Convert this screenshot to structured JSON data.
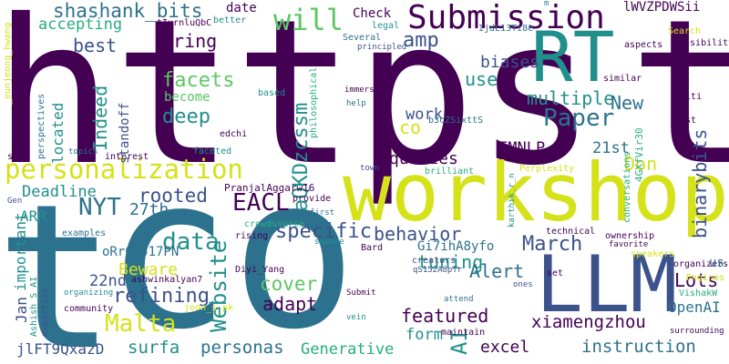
{
  "palette": [
    "#440154",
    "#3b528b",
    "#2c728e",
    "#21908c",
    "#27ad81",
    "#5cc863",
    "#aadc32",
    "#d5e21a",
    "#fde725"
  ],
  "words": [
    {
      "text": "https",
      "color": "#440154"
    },
    {
      "text": "t",
      "color": "#440154"
    },
    {
      "text": "co",
      "color": "#2c728e"
    },
    {
      "text": "t",
      "color": "#2c728e"
    },
    {
      "text": "workshop",
      "color": "#d5e21a"
    },
    {
      "text": "RT",
      "color": "#21908c"
    },
    {
      "text": "LLM",
      "color": "#3b528b"
    },
    {
      "text": "Submission",
      "color": "#440154"
    },
    {
      "text": "personalization",
      "color": "#d5e21a"
    },
    {
      "text": "will",
      "color": "#5cc863"
    },
    {
      "text": "amp",
      "color": "#3b528b"
    },
    {
      "text": "Paper",
      "color": "#2c728e"
    },
    {
      "text": "shashank_bits",
      "color": "#2c728e"
    },
    {
      "text": "aQKDzcssm",
      "color": "#21908c"
    },
    {
      "text": "binarybits",
      "color": "#3b528b"
    },
    {
      "text": "Website",
      "color": "#21908c"
    },
    {
      "text": "EACL",
      "color": "#440154"
    },
    {
      "text": "NYT",
      "color": "#2c728e"
    },
    {
      "text": "data",
      "color": "#21908c"
    },
    {
      "text": "Malta",
      "color": "#d5e21a"
    },
    {
      "text": "AI",
      "color": "#21908c"
    },
    {
      "text": "March",
      "color": "#3b528b"
    },
    {
      "text": "rooted",
      "color": "#3b528b"
    },
    {
      "text": "specific",
      "color": "#3b528b"
    },
    {
      "text": "behavior",
      "color": "#3b528b"
    },
    {
      "text": "refining",
      "color": "#3b528b"
    },
    {
      "text": "facets",
      "color": "#5cc863"
    },
    {
      "text": "deep",
      "color": "#21908c"
    },
    {
      "text": "bring",
      "color": "#440154"
    },
    {
      "text": "best",
      "color": "#3b528b"
    },
    {
      "text": "Indeed",
      "color": "#21908c"
    },
    {
      "text": "accepting",
      "color": "#27ad81"
    },
    {
      "text": "use",
      "color": "#21908c"
    },
    {
      "text": "multiple",
      "color": "#21908c"
    },
    {
      "text": "biases",
      "color": "#3b528b"
    },
    {
      "text": "New",
      "color": "#2c728e"
    },
    {
      "text": "co",
      "color": "#d5e21a"
    },
    {
      "text": "work",
      "color": "#3b528b"
    },
    {
      "text": "queries",
      "color": "#440154"
    },
    {
      "text": "EMNLP",
      "color": "#440154"
    },
    {
      "text": "Don",
      "color": "#d5e21a"
    },
    {
      "text": "21st",
      "color": "#2c728e"
    },
    {
      "text": "Deadline",
      "color": "#21908c"
    },
    {
      "text": "27th",
      "color": "#2c728e"
    },
    {
      "text": "cover",
      "color": "#5cc863"
    },
    {
      "text": "adapt",
      "color": "#440154"
    },
    {
      "text": "tuning",
      "color": "#21908c"
    },
    {
      "text": "featured",
      "color": "#440154"
    },
    {
      "text": "Alert",
      "color": "#2c728e"
    },
    {
      "text": "Lots",
      "color": "#440154"
    },
    {
      "text": "OpenAI",
      "color": "#2c728e"
    },
    {
      "text": "xiamengzhou",
      "color": "#440154"
    },
    {
      "text": "instruction",
      "color": "#2c728e"
    },
    {
      "text": "excel",
      "color": "#440154"
    },
    {
      "text": "Generative",
      "color": "#27ad81"
    },
    {
      "text": "personas",
      "color": "#2c728e"
    },
    {
      "text": "surfa",
      "color": "#21908c"
    },
    {
      "text": "form",
      "color": "#21908c"
    },
    {
      "text": "Beware",
      "color": "#d5e21a"
    },
    {
      "text": "22nd",
      "color": "#3b528b"
    },
    {
      "text": "Jan",
      "color": "#3b528b"
    },
    {
      "text": "important",
      "color": "#21908c"
    },
    {
      "text": "ARR",
      "color": "#21908c"
    },
    {
      "text": "jlFT9QxazD",
      "color": "#3b528b"
    },
    {
      "text": "oRr6T517PN",
      "color": "#2c728e"
    },
    {
      "text": "Gi7ihA8yfo",
      "color": "#2c728e"
    },
    {
      "text": "Check",
      "color": "#440154"
    },
    {
      "text": "date",
      "color": "#440154"
    },
    {
      "text": "become",
      "color": "#5cc863"
    },
    {
      "text": "located",
      "color": "#21908c"
    },
    {
      "text": "standoff",
      "color": "#3b528b"
    },
    {
      "text": "lWVZPDWSii",
      "color": "#440154"
    },
    {
      "text": "IjdL13Ti8e",
      "color": "#2c728e"
    },
    {
      "text": "tIurnluQbC",
      "color": "#440154"
    },
    {
      "text": "better",
      "color": "#21908c"
    },
    {
      "text": "legal",
      "color": "#21908c"
    },
    {
      "text": "Several",
      "color": "#2c728e"
    },
    {
      "text": "principled",
      "color": "#3b528b"
    },
    {
      "text": "philosophical",
      "color": "#27ad81"
    },
    {
      "text": "immerse",
      "color": "#440154"
    },
    {
      "text": "help",
      "color": "#2c728e"
    },
    {
      "text": "b3cZSixttS",
      "color": "#2c728e"
    },
    {
      "text": "edchi",
      "color": "#440154"
    },
    {
      "text": "faceted",
      "color": "#21908c"
    },
    {
      "text": "interest",
      "color": "#440154"
    },
    {
      "text": "topics",
      "color": "#2c728e"
    },
    {
      "text": "sure",
      "color": "#440154"
    },
    {
      "text": "Gen",
      "color": "#3b528b"
    },
    {
      "text": "perspectives",
      "color": "#2c728e"
    },
    {
      "text": "_eunjeong_hwang",
      "color": "#d5e21a"
    },
    {
      "text": "Ashish_S_AI",
      "color": "#21908c"
    },
    {
      "text": "expertise",
      "color": "#3b528b"
    },
    {
      "text": "examples",
      "color": "#2c728e"
    },
    {
      "text": "organizing",
      "color": "#21908c"
    },
    {
      "text": "community",
      "color": "#440154"
    },
    {
      "text": "ashwinkalyan7",
      "color": "#440154"
    },
    {
      "text": "joon_s_pk",
      "color": "#d5e21a"
    },
    {
      "text": "Diyi_Yang",
      "color": "#440154"
    },
    {
      "text": "PranjalAggarw16",
      "color": "#440154"
    },
    {
      "text": "provide",
      "color": "#440154"
    },
    {
      "text": "crowdsource",
      "color": "#27ad81"
    },
    {
      "text": "first",
      "color": "#2c728e"
    },
    {
      "text": "rising",
      "color": "#440154"
    },
    {
      "text": "square",
      "color": "#21908c"
    },
    {
      "text": "Bard",
      "color": "#440154"
    },
    {
      "text": "creators",
      "color": "#3b528b"
    },
    {
      "text": "qS152A8pTr",
      "color": "#3b528b"
    },
    {
      "text": "Submit",
      "color": "#440154"
    },
    {
      "text": "vein",
      "color": "#21908c"
    },
    {
      "text": "attend",
      "color": "#2c728e"
    },
    {
      "text": "ones",
      "color": "#3b528b"
    },
    {
      "text": "set",
      "color": "#440154"
    },
    {
      "text": "maintain",
      "color": "#440154"
    },
    {
      "text": "Perplexity",
      "color": "#d5e21a"
    },
    {
      "text": "karthik_r_n",
      "color": "#21908c"
    },
    {
      "text": "brilliant",
      "color": "#27ad81"
    },
    {
      "text": "town",
      "color": "#3b528b"
    },
    {
      "text": "technical",
      "color": "#440154"
    },
    {
      "text": "ownership",
      "color": "#440154"
    },
    {
      "text": "conversations",
      "color": "#27ad81"
    },
    {
      "text": "4GXfVir30",
      "color": "#27ad81"
    },
    {
      "text": "speakers",
      "color": "#d5e21a"
    },
    {
      "text": "favorite",
      "color": "#440154"
    },
    {
      "text": "organizers",
      "color": "#440154"
    },
    {
      "text": "Engines",
      "color": "#d5e21a"
    },
    {
      "text": "VishakW",
      "color": "#27ad81"
    },
    {
      "text": "surrounding",
      "color": "#440154"
    },
    {
      "text": "post",
      "color": "#440154"
    },
    {
      "text": "multi",
      "color": "#440154"
    },
    {
      "text": "similar",
      "color": "#440154"
    },
    {
      "text": "aspects",
      "color": "#440154"
    },
    {
      "text": "Search",
      "color": "#d5e21a"
    },
    {
      "text": "visibility",
      "color": "#440154"
    },
    {
      "text": "based",
      "color": "#21908c"
    },
    {
      "text": "m",
      "color": "#21908c"
    },
    {
      "text": "us",
      "color": "#2c728e"
    }
  ]
}
